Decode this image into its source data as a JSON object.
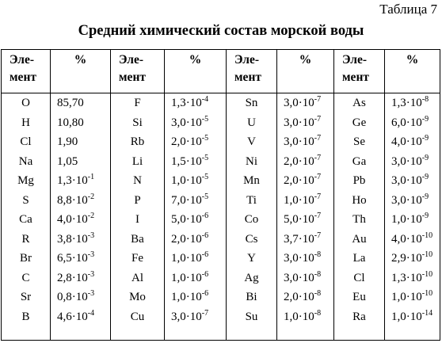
{
  "table_label": "Таблица 7",
  "title": "Средний химический состав морской воды",
  "headers": {
    "element_line1": "Эле-",
    "element_line2": "мент",
    "percent": "%"
  },
  "groups": [
    {
      "rows": [
        {
          "el": "O",
          "m": "85,70",
          "e": ""
        },
        {
          "el": "H",
          "m": "10,80",
          "e": ""
        },
        {
          "el": "Cl",
          "m": "1,90",
          "e": ""
        },
        {
          "el": "Na",
          "m": "1,05",
          "e": ""
        },
        {
          "el": "Mg",
          "m": "1,3·10",
          "e": "-1"
        },
        {
          "el": "S",
          "m": "8,8·10",
          "e": "-2"
        },
        {
          "el": "Ca",
          "m": "4,0·10",
          "e": "-2"
        },
        {
          "el": "R",
          "m": "3,8·10",
          "e": "-3"
        },
        {
          "el": "Br",
          "m": "6,5·10",
          "e": "-3"
        },
        {
          "el": "C",
          "m": "2,8·10",
          "e": "-3"
        },
        {
          "el": "Sr",
          "m": "0,8·10",
          "e": "-3"
        },
        {
          "el": "B",
          "m": "4,6·10",
          "e": "-4"
        }
      ]
    },
    {
      "rows": [
        {
          "el": "F",
          "m": "1,3·10",
          "e": "-4"
        },
        {
          "el": "Si",
          "m": "3,0·10",
          "e": "-5"
        },
        {
          "el": "Rb",
          "m": "2,0·10",
          "e": "-5"
        },
        {
          "el": "Li",
          "m": "1,5·10",
          "e": "-5"
        },
        {
          "el": "N",
          "m": "1,0·10",
          "e": "-5"
        },
        {
          "el": "P",
          "m": "7,0·10",
          "e": "-5"
        },
        {
          "el": "I",
          "m": "5,0·10",
          "e": "-6"
        },
        {
          "el": "Ba",
          "m": "2,0·10",
          "e": "-6"
        },
        {
          "el": "Fe",
          "m": "1,0·10",
          "e": "-6"
        },
        {
          "el": "Al",
          "m": "1,0·10",
          "e": "-6"
        },
        {
          "el": "Mo",
          "m": "1,0·10",
          "e": "-6"
        },
        {
          "el": "Cu",
          "m": "3,0·10",
          "e": "-7"
        }
      ]
    },
    {
      "rows": [
        {
          "el": "Sn",
          "m": "3,0·10",
          "e": "-7"
        },
        {
          "el": "U",
          "m": "3,0·10",
          "e": "-7"
        },
        {
          "el": "V",
          "m": "3,0·10",
          "e": "-7"
        },
        {
          "el": "Ni",
          "m": "2,0·10",
          "e": "-7"
        },
        {
          "el": "Mn",
          "m": "2,0·10",
          "e": "-7"
        },
        {
          "el": "Ti",
          "m": "1,0·10",
          "e": "-7"
        },
        {
          "el": "Co",
          "m": "5,0·10",
          "e": "-7"
        },
        {
          "el": "Cs",
          "m": "3,7·10",
          "e": "-7"
        },
        {
          "el": "Y",
          "m": "3,0·10",
          "e": "-8"
        },
        {
          "el": "Ag",
          "m": "3,0·10",
          "e": "-8"
        },
        {
          "el": "Bi",
          "m": "2,0·10",
          "e": "-8"
        },
        {
          "el": "Su",
          "m": "1,0·10",
          "e": "-8"
        }
      ]
    },
    {
      "rows": [
        {
          "el": "As",
          "m": "1,3·10",
          "e": "-8"
        },
        {
          "el": "Ge",
          "m": "6,0·10",
          "e": "-9"
        },
        {
          "el": "Se",
          "m": "4,0·10",
          "e": "-9"
        },
        {
          "el": "Ga",
          "m": "3,0·10",
          "e": "-9"
        },
        {
          "el": "Pb",
          "m": "3,0·10",
          "e": "-9"
        },
        {
          "el": "Ho",
          "m": "3,0·10",
          "e": "-9"
        },
        {
          "el": "Th",
          "m": "1,0·10",
          "e": "-9"
        },
        {
          "el": "Au",
          "m": "4,0·10",
          "e": "-10"
        },
        {
          "el": "La",
          "m": "2,9·10",
          "e": "-10"
        },
        {
          "el": "Cl",
          "m": "1,3·10",
          "e": "-10"
        },
        {
          "el": "Eu",
          "m": "1,0·10",
          "e": "-10"
        },
        {
          "el": "Ra",
          "m": "1,0·10",
          "e": "-14"
        }
      ]
    }
  ]
}
